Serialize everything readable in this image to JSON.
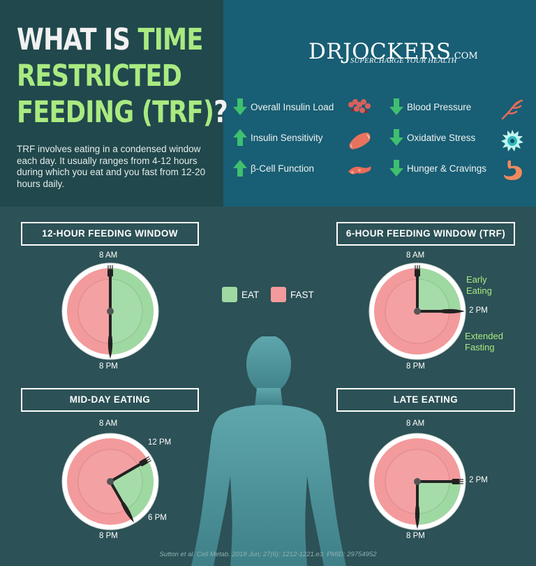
{
  "header": {
    "title_line1_white": "WHAT IS ",
    "title_line1_green": "TIME",
    "title_line2": "RESTRICTED",
    "title_line3_green": "FEEDING (TRF)",
    "title_line3_white": "?",
    "intro": "TRF involves eating in a condensed window each day. It usually ranges from 4-12 hours during which you eat and you fast from 12-20 hours daily."
  },
  "brand": {
    "name": "DRJOCKERS",
    "suffix": ".COM",
    "tagline": "SUPERCHARGE YOUR HEALTH"
  },
  "effects": [
    {
      "label": "Overall Insulin Load",
      "direction": "down",
      "icon": "insulin-molecule-icon"
    },
    {
      "label": "Insulin Sensitivity",
      "direction": "up",
      "icon": "muscle-icon"
    },
    {
      "label": "β-Cell Function",
      "direction": "up",
      "icon": "pancreas-icon"
    },
    {
      "label": "Blood Pressure",
      "direction": "down",
      "icon": "blood-vessel-icon"
    },
    {
      "label": "Oxidative Stress",
      "direction": "down",
      "icon": "free-radical-icon"
    },
    {
      "label": "Hunger & Cravings",
      "direction": "down",
      "icon": "stomach-icon"
    }
  ],
  "colors": {
    "eat": "#9fd9a2",
    "fast": "#f39a9c",
    "accent_green": "#a9ea81",
    "top_left_bg": "#21484c",
    "top_right_bg": "#185e74",
    "bottom_bg": "#2c5156"
  },
  "legend": {
    "eat": "EAT",
    "fast": "FAST"
  },
  "clocks": [
    {
      "id": "twelve",
      "title": "12-HOUR FEEDING WINDOW",
      "top_label": "8 AM",
      "bottom_label": "8 PM",
      "eat_start_hour": 8,
      "eat_end_hour": 20,
      "side_labels": []
    },
    {
      "id": "six",
      "title": "6-HOUR FEEDING WINDOW (TRF)",
      "top_label": "8 AM",
      "bottom_label": "8 PM",
      "eat_start_hour": 8,
      "eat_end_hour": 14,
      "side_labels": [
        "2 PM"
      ],
      "notes": [
        "Early Eating",
        "Extended Fasting"
      ]
    },
    {
      "id": "midday",
      "title": "MID-DAY EATING",
      "top_label": "8 AM",
      "bottom_label": "8 PM",
      "eat_start_hour": 12,
      "eat_end_hour": 18,
      "side_labels": [
        "12 PM",
        "6 PM"
      ]
    },
    {
      "id": "late",
      "title": "LATE EATING",
      "top_label": "8 AM",
      "bottom_label": "8 PM",
      "eat_start_hour": 14,
      "eat_end_hour": 20,
      "side_labels": [
        "2 PM"
      ]
    }
  ],
  "citation": "Sutton et al. Cell Metab. 2018 Jun; 27(6): 1212-1221.e3. PMID: 29754952"
}
